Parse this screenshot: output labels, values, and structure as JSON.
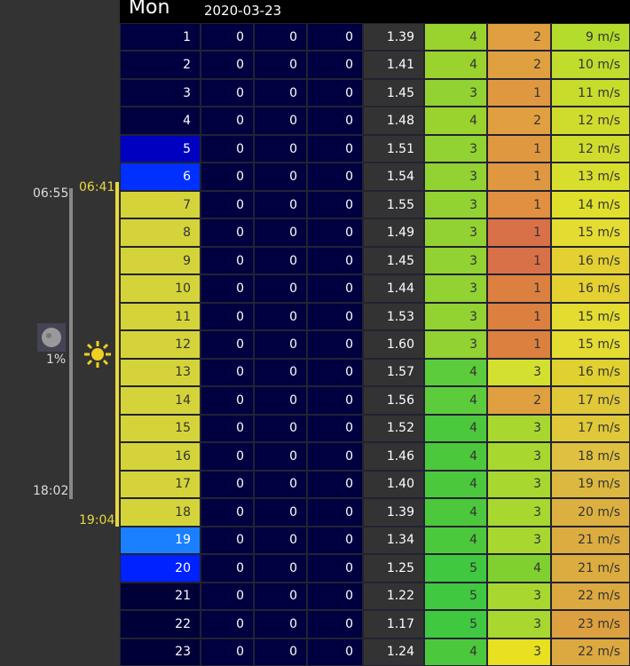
{
  "header": {
    "day": "Mon",
    "date": "2020-03-23"
  },
  "moon": {
    "rise": "06:55",
    "set": "18:02",
    "illumination": "1%"
  },
  "sun": {
    "rise": "06:41",
    "set": "19:04"
  },
  "rows": [
    {
      "hour": "1",
      "hour_bg": "#000040",
      "vals": [
        "0",
        "0",
        "0"
      ],
      "wave": "1.39",
      "a": "4",
      "a_bg": "#9ad22e",
      "b": "2",
      "b_bg": "#e0a040",
      "wind": "9 m/s",
      "wind_bg": "#b4dc2c"
    },
    {
      "hour": "2",
      "hour_bg": "#000040",
      "vals": [
        "0",
        "0",
        "0"
      ],
      "wave": "1.41",
      "a": "4",
      "a_bg": "#9ad22e",
      "b": "2",
      "b_bg": "#e0a040",
      "wind": "10 m/s",
      "wind_bg": "#c0dc2c"
    },
    {
      "hour": "3",
      "hour_bg": "#000040",
      "vals": [
        "0",
        "0",
        "0"
      ],
      "wave": "1.45",
      "a": "3",
      "a_bg": "#92d232",
      "b": "1",
      "b_bg": "#e09840",
      "wind": "11 m/s",
      "wind_bg": "#c8dc2c"
    },
    {
      "hour": "4",
      "hour_bg": "#000040",
      "vals": [
        "0",
        "0",
        "0"
      ],
      "wave": "1.48",
      "a": "4",
      "a_bg": "#9ad22e",
      "b": "2",
      "b_bg": "#e0a040",
      "wind": "12 m/s",
      "wind_bg": "#d0dc2c"
    },
    {
      "hour": "5",
      "hour_bg": "#0000c0",
      "vals": [
        "0",
        "0",
        "0"
      ],
      "wave": "1.51",
      "a": "3",
      "a_bg": "#92d232",
      "b": "1",
      "b_bg": "#e09840",
      "wind": "12 m/s",
      "wind_bg": "#d0dc2c"
    },
    {
      "hour": "6",
      "hour_bg": "#0030ff",
      "vals": [
        "0",
        "0",
        "0"
      ],
      "wave": "1.54",
      "a": "3",
      "a_bg": "#92d232",
      "b": "1",
      "b_bg": "#e09840",
      "wind": "13 m/s",
      "wind_bg": "#d8de2c"
    },
    {
      "hour": "7",
      "hour_bg": "#d4d43a",
      "vals": [
        "0",
        "0",
        "0"
      ],
      "wave": "1.55",
      "a": "3",
      "a_bg": "#92d232",
      "b": "1",
      "b_bg": "#e09040",
      "wind": "14 m/s",
      "wind_bg": "#e0e02c"
    },
    {
      "hour": "8",
      "hour_bg": "#d4d43a",
      "vals": [
        "0",
        "0",
        "0"
      ],
      "wave": "1.49",
      "a": "3",
      "a_bg": "#92d232",
      "b": "1",
      "b_bg": "#d87048",
      "wind": "15 m/s",
      "wind_bg": "#e4dc30"
    },
    {
      "hour": "9",
      "hour_bg": "#d4d43a",
      "vals": [
        "0",
        "0",
        "0"
      ],
      "wave": "1.45",
      "a": "3",
      "a_bg": "#92d232",
      "b": "1",
      "b_bg": "#d87048",
      "wind": "16 m/s",
      "wind_bg": "#e4d030"
    },
    {
      "hour": "10",
      "hour_bg": "#d4d43a",
      "vals": [
        "0",
        "0",
        "0"
      ],
      "wave": "1.44",
      "a": "3",
      "a_bg": "#92d232",
      "b": "1",
      "b_bg": "#dc8040",
      "wind": "16 m/s",
      "wind_bg": "#e4d030"
    },
    {
      "hour": "11",
      "hour_bg": "#d4d43a",
      "vals": [
        "0",
        "0",
        "0"
      ],
      "wave": "1.53",
      "a": "3",
      "a_bg": "#92d232",
      "b": "1",
      "b_bg": "#dc8040",
      "wind": "15 m/s",
      "wind_bg": "#e4dc30"
    },
    {
      "hour": "12",
      "hour_bg": "#d4d43a",
      "vals": [
        "0",
        "0",
        "0"
      ],
      "wave": "1.60",
      "a": "3",
      "a_bg": "#92d232",
      "b": "1",
      "b_bg": "#dc8040",
      "wind": "15 m/s",
      "wind_bg": "#e4dc30"
    },
    {
      "hour": "13",
      "hour_bg": "#d4d43a",
      "vals": [
        "0",
        "0",
        "0"
      ],
      "wave": "1.57",
      "a": "4",
      "a_bg": "#5ccc3c",
      "b": "3",
      "b_bg": "#d4e030",
      "wind": "16 m/s",
      "wind_bg": "#e0d030"
    },
    {
      "hour": "14",
      "hour_bg": "#d4d43a",
      "vals": [
        "0",
        "0",
        "0"
      ],
      "wave": "1.56",
      "a": "4",
      "a_bg": "#5ccc3c",
      "b": "2",
      "b_bg": "#e0a040",
      "wind": "17 m/s",
      "wind_bg": "#e0c838"
    },
    {
      "hour": "15",
      "hour_bg": "#d4d43a",
      "vals": [
        "0",
        "0",
        "0"
      ],
      "wave": "1.52",
      "a": "4",
      "a_bg": "#4cc83c",
      "b": "3",
      "b_bg": "#a8d830",
      "wind": "17 m/s",
      "wind_bg": "#e0c838"
    },
    {
      "hour": "16",
      "hour_bg": "#d4d43a",
      "vals": [
        "0",
        "0",
        "0"
      ],
      "wave": "1.46",
      "a": "4",
      "a_bg": "#4cc83c",
      "b": "3",
      "b_bg": "#a8d830",
      "wind": "18 m/s",
      "wind_bg": "#e0c040"
    },
    {
      "hour": "17",
      "hour_bg": "#d4d43a",
      "vals": [
        "0",
        "0",
        "0"
      ],
      "wave": "1.40",
      "a": "4",
      "a_bg": "#4cc83c",
      "b": "3",
      "b_bg": "#a8d830",
      "wind": "19 m/s",
      "wind_bg": "#dcb840"
    },
    {
      "hour": "18",
      "hour_bg": "#d4d43a",
      "vals": [
        "0",
        "0",
        "0"
      ],
      "wave": "1.39",
      "a": "4",
      "a_bg": "#4cc83c",
      "b": "3",
      "b_bg": "#a8d830",
      "wind": "20 m/s",
      "wind_bg": "#dcb040"
    },
    {
      "hour": "19",
      "hour_bg": "#1a80ff",
      "vals": [
        "0",
        "0",
        "0"
      ],
      "wave": "1.34",
      "a": "4",
      "a_bg": "#4cc83c",
      "b": "3",
      "b_bg": "#a8d830",
      "wind": "21 m/s",
      "wind_bg": "#dcac40"
    },
    {
      "hour": "20",
      "hour_bg": "#0022ff",
      "vals": [
        "0",
        "0",
        "0"
      ],
      "wave": "1.25",
      "a": "5",
      "a_bg": "#40c840",
      "b": "4",
      "b_bg": "#80d030",
      "wind": "21 m/s",
      "wind_bg": "#dcac40"
    },
    {
      "hour": "21",
      "hour_bg": "#000038",
      "vals": [
        "0",
        "0",
        "0"
      ],
      "wave": "1.22",
      "a": "5",
      "a_bg": "#40c840",
      "b": "3",
      "b_bg": "#a8d830",
      "wind": "22 m/s",
      "wind_bg": "#dca840"
    },
    {
      "hour": "22",
      "hour_bg": "#000038",
      "vals": [
        "0",
        "0",
        "0"
      ],
      "wave": "1.17",
      "a": "5",
      "a_bg": "#40c840",
      "b": "3",
      "b_bg": "#a8d830",
      "wind": "23 m/s",
      "wind_bg": "#dca040"
    },
    {
      "hour": "23",
      "hour_bg": "#000038",
      "vals": [
        "0",
        "0",
        "0"
      ],
      "wave": "1.24",
      "a": "4",
      "a_bg": "#4cc83c",
      "b": "3",
      "b_bg": "#e8e020",
      "wind": "22 m/s",
      "wind_bg": "#dca840"
    }
  ]
}
